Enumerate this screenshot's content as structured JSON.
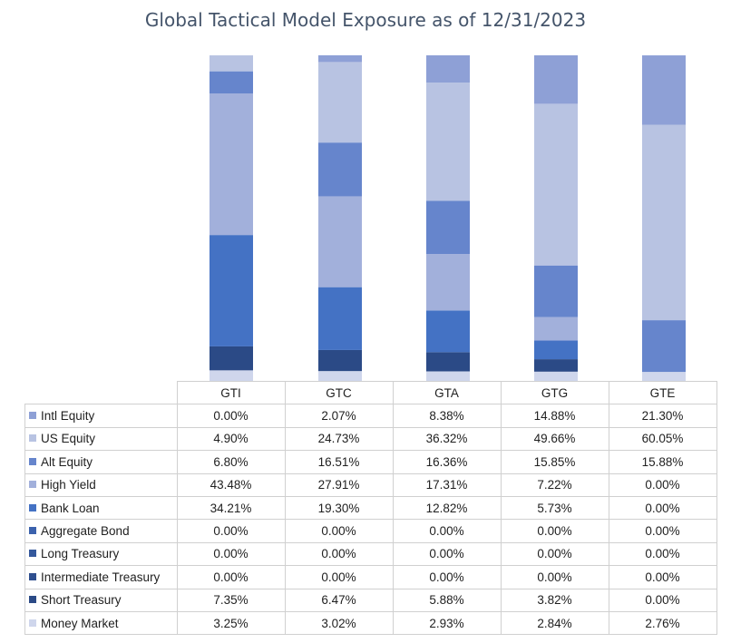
{
  "chart_data": {
    "type": "bar",
    "stacked": true,
    "title": "Global Tactical Model Exposure as of 12/31/2023",
    "categories": [
      "GTI",
      "GTC",
      "GTA",
      "GTG",
      "GTE"
    ],
    "series": [
      {
        "name": "Intl Equity",
        "color": "#8ea0d6",
        "labels": [
          "0.00%",
          "2.07%",
          "8.38%",
          "14.88%",
          "21.30%"
        ],
        "values": [
          0.0,
          2.07,
          8.38,
          14.88,
          21.3
        ]
      },
      {
        "name": "US Equity",
        "color": "#b8c3e2",
        "labels": [
          "4.90%",
          "24.73%",
          "36.32%",
          "49.66%",
          "60.05%"
        ],
        "values": [
          4.9,
          24.73,
          36.32,
          49.66,
          60.05
        ]
      },
      {
        "name": "Alt Equity",
        "color": "#6685cc",
        "labels": [
          "6.80%",
          "16.51%",
          "16.36%",
          "15.85%",
          "15.88%"
        ],
        "values": [
          6.8,
          16.51,
          16.36,
          15.85,
          15.88
        ]
      },
      {
        "name": "High Yield",
        "color": "#a2b0db",
        "labels": [
          "43.48%",
          "27.91%",
          "17.31%",
          "7.22%",
          "0.00%"
        ],
        "values": [
          43.48,
          27.91,
          17.31,
          7.22,
          0.0
        ]
      },
      {
        "name": "Bank Loan",
        "color": "#4472c4",
        "labels": [
          "34.21%",
          "19.30%",
          "12.82%",
          "5.73%",
          "0.00%"
        ],
        "values": [
          34.21,
          19.3,
          12.82,
          5.73,
          0.0
        ]
      },
      {
        "name": "Aggregate Bond",
        "color": "#3b62ad",
        "labels": [
          "0.00%",
          "0.00%",
          "0.00%",
          "0.00%",
          "0.00%"
        ],
        "values": [
          0,
          0,
          0,
          0,
          0
        ]
      },
      {
        "name": "Long Treasury",
        "color": "#34589c",
        "labels": [
          "0.00%",
          "0.00%",
          "0.00%",
          "0.00%",
          "0.00%"
        ],
        "values": [
          0,
          0,
          0,
          0,
          0
        ]
      },
      {
        "name": "Intermediate Treasury",
        "color": "#2f4f8f",
        "labels": [
          "0.00%",
          "0.00%",
          "0.00%",
          "0.00%",
          "0.00%"
        ],
        "values": [
          0,
          0,
          0,
          0,
          0
        ]
      },
      {
        "name": "Short Treasury",
        "color": "#2b4a86",
        "labels": [
          "7.35%",
          "6.47%",
          "5.88%",
          "3.82%",
          "0.00%"
        ],
        "values": [
          7.35,
          6.47,
          5.88,
          3.82,
          0.0
        ]
      },
      {
        "name": "Money Market",
        "color": "#cfd6ec",
        "labels": [
          "3.25%",
          "3.02%",
          "2.93%",
          "2.84%",
          "2.76%"
        ],
        "values": [
          3.25,
          3.02,
          2.93,
          2.84,
          2.76
        ]
      }
    ],
    "ylim": [
      0,
      100
    ],
    "grid": false,
    "legend": "data-table"
  }
}
